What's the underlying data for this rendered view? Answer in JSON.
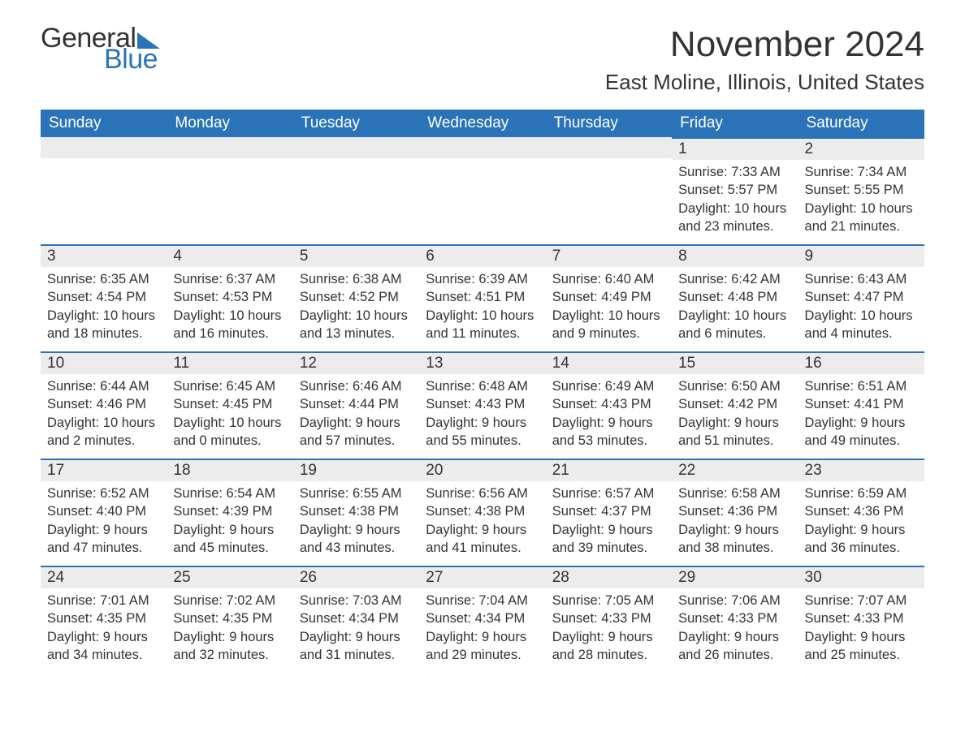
{
  "brand": {
    "general": "General",
    "blue": "Blue",
    "logo_color": "#2a73b9"
  },
  "title": "November 2024",
  "location": "East Moline, Illinois, United States",
  "colors": {
    "header_bg": "#2a73b9",
    "header_text": "#ffffff",
    "day_bg": "#ececec",
    "border": "#2a73b9",
    "text": "#333333",
    "page_bg": "#ffffff"
  },
  "weekdays": [
    "Sunday",
    "Monday",
    "Tuesday",
    "Wednesday",
    "Thursday",
    "Friday",
    "Saturday"
  ],
  "weeks": [
    [
      null,
      null,
      null,
      null,
      null,
      {
        "n": "1",
        "sunrise": "Sunrise: 7:33 AM",
        "sunset": "Sunset: 5:57 PM",
        "daylight": "Daylight: 10 hours and 23 minutes."
      },
      {
        "n": "2",
        "sunrise": "Sunrise: 7:34 AM",
        "sunset": "Sunset: 5:55 PM",
        "daylight": "Daylight: 10 hours and 21 minutes."
      }
    ],
    [
      {
        "n": "3",
        "sunrise": "Sunrise: 6:35 AM",
        "sunset": "Sunset: 4:54 PM",
        "daylight": "Daylight: 10 hours and 18 minutes."
      },
      {
        "n": "4",
        "sunrise": "Sunrise: 6:37 AM",
        "sunset": "Sunset: 4:53 PM",
        "daylight": "Daylight: 10 hours and 16 minutes."
      },
      {
        "n": "5",
        "sunrise": "Sunrise: 6:38 AM",
        "sunset": "Sunset: 4:52 PM",
        "daylight": "Daylight: 10 hours and 13 minutes."
      },
      {
        "n": "6",
        "sunrise": "Sunrise: 6:39 AM",
        "sunset": "Sunset: 4:51 PM",
        "daylight": "Daylight: 10 hours and 11 minutes."
      },
      {
        "n": "7",
        "sunrise": "Sunrise: 6:40 AM",
        "sunset": "Sunset: 4:49 PM",
        "daylight": "Daylight: 10 hours and 9 minutes."
      },
      {
        "n": "8",
        "sunrise": "Sunrise: 6:42 AM",
        "sunset": "Sunset: 4:48 PM",
        "daylight": "Daylight: 10 hours and 6 minutes."
      },
      {
        "n": "9",
        "sunrise": "Sunrise: 6:43 AM",
        "sunset": "Sunset: 4:47 PM",
        "daylight": "Daylight: 10 hours and 4 minutes."
      }
    ],
    [
      {
        "n": "10",
        "sunrise": "Sunrise: 6:44 AM",
        "sunset": "Sunset: 4:46 PM",
        "daylight": "Daylight: 10 hours and 2 minutes."
      },
      {
        "n": "11",
        "sunrise": "Sunrise: 6:45 AM",
        "sunset": "Sunset: 4:45 PM",
        "daylight": "Daylight: 10 hours and 0 minutes."
      },
      {
        "n": "12",
        "sunrise": "Sunrise: 6:46 AM",
        "sunset": "Sunset: 4:44 PM",
        "daylight": "Daylight: 9 hours and 57 minutes."
      },
      {
        "n": "13",
        "sunrise": "Sunrise: 6:48 AM",
        "sunset": "Sunset: 4:43 PM",
        "daylight": "Daylight: 9 hours and 55 minutes."
      },
      {
        "n": "14",
        "sunrise": "Sunrise: 6:49 AM",
        "sunset": "Sunset: 4:43 PM",
        "daylight": "Daylight: 9 hours and 53 minutes."
      },
      {
        "n": "15",
        "sunrise": "Sunrise: 6:50 AM",
        "sunset": "Sunset: 4:42 PM",
        "daylight": "Daylight: 9 hours and 51 minutes."
      },
      {
        "n": "16",
        "sunrise": "Sunrise: 6:51 AM",
        "sunset": "Sunset: 4:41 PM",
        "daylight": "Daylight: 9 hours and 49 minutes."
      }
    ],
    [
      {
        "n": "17",
        "sunrise": "Sunrise: 6:52 AM",
        "sunset": "Sunset: 4:40 PM",
        "daylight": "Daylight: 9 hours and 47 minutes."
      },
      {
        "n": "18",
        "sunrise": "Sunrise: 6:54 AM",
        "sunset": "Sunset: 4:39 PM",
        "daylight": "Daylight: 9 hours and 45 minutes."
      },
      {
        "n": "19",
        "sunrise": "Sunrise: 6:55 AM",
        "sunset": "Sunset: 4:38 PM",
        "daylight": "Daylight: 9 hours and 43 minutes."
      },
      {
        "n": "20",
        "sunrise": "Sunrise: 6:56 AM",
        "sunset": "Sunset: 4:38 PM",
        "daylight": "Daylight: 9 hours and 41 minutes."
      },
      {
        "n": "21",
        "sunrise": "Sunrise: 6:57 AM",
        "sunset": "Sunset: 4:37 PM",
        "daylight": "Daylight: 9 hours and 39 minutes."
      },
      {
        "n": "22",
        "sunrise": "Sunrise: 6:58 AM",
        "sunset": "Sunset: 4:36 PM",
        "daylight": "Daylight: 9 hours and 38 minutes."
      },
      {
        "n": "23",
        "sunrise": "Sunrise: 6:59 AM",
        "sunset": "Sunset: 4:36 PM",
        "daylight": "Daylight: 9 hours and 36 minutes."
      }
    ],
    [
      {
        "n": "24",
        "sunrise": "Sunrise: 7:01 AM",
        "sunset": "Sunset: 4:35 PM",
        "daylight": "Daylight: 9 hours and 34 minutes."
      },
      {
        "n": "25",
        "sunrise": "Sunrise: 7:02 AM",
        "sunset": "Sunset: 4:35 PM",
        "daylight": "Daylight: 9 hours and 32 minutes."
      },
      {
        "n": "26",
        "sunrise": "Sunrise: 7:03 AM",
        "sunset": "Sunset: 4:34 PM",
        "daylight": "Daylight: 9 hours and 31 minutes."
      },
      {
        "n": "27",
        "sunrise": "Sunrise: 7:04 AM",
        "sunset": "Sunset: 4:34 PM",
        "daylight": "Daylight: 9 hours and 29 minutes."
      },
      {
        "n": "28",
        "sunrise": "Sunrise: 7:05 AM",
        "sunset": "Sunset: 4:33 PM",
        "daylight": "Daylight: 9 hours and 28 minutes."
      },
      {
        "n": "29",
        "sunrise": "Sunrise: 7:06 AM",
        "sunset": "Sunset: 4:33 PM",
        "daylight": "Daylight: 9 hours and 26 minutes."
      },
      {
        "n": "30",
        "sunrise": "Sunrise: 7:07 AM",
        "sunset": "Sunset: 4:33 PM",
        "daylight": "Daylight: 9 hours and 25 minutes."
      }
    ]
  ]
}
